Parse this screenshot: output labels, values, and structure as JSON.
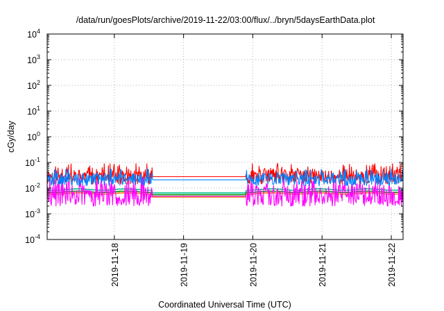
{
  "chart_data": {
    "type": "line",
    "title": "/data/run/goesPlots/archive/2019-11-22/03:00/flux/../bryn/5daysEarthData.plot",
    "xlabel": "Coordinated Universal Time (UTC)",
    "ylabel": "cGy/day",
    "yscale": "log",
    "ylim": [
      0.0001,
      10000
    ],
    "y_ticks": [
      {
        "exp": -4,
        "mantissa": "10",
        "power": "-4"
      },
      {
        "exp": -3,
        "mantissa": "10",
        "power": "-3"
      },
      {
        "exp": -2,
        "mantissa": "10",
        "power": "-2"
      },
      {
        "exp": -1,
        "mantissa": "10",
        "power": "-1"
      },
      {
        "exp": 0,
        "mantissa": "10",
        "power": "0"
      },
      {
        "exp": 1,
        "mantissa": "10",
        "power": "1"
      },
      {
        "exp": 2,
        "mantissa": "10",
        "power": "2"
      },
      {
        "exp": 3,
        "mantissa": "10",
        "power": "3"
      },
      {
        "exp": 4,
        "mantissa": "10",
        "power": "4"
      }
    ],
    "xlim": [
      -0.97,
      4.17
    ],
    "x_origin_label": "2019-11-18",
    "x_ticks": [
      {
        "x": 0,
        "label": "2019-11-18"
      },
      {
        "x": 1,
        "label": "2019-11-19"
      },
      {
        "x": 2,
        "label": "2019-11-20"
      },
      {
        "x": 3,
        "label": "2019-11-21"
      },
      {
        "x": 4,
        "label": "2019-11-22"
      }
    ],
    "grid": true,
    "data_gap": [
      0.55,
      1.9
    ],
    "series": [
      {
        "color": "#ff0000",
        "noisy": true,
        "base": 0.028,
        "spread": 0.6,
        "spike": 0.07,
        "gap_level": 0.028,
        "seed": 11
      },
      {
        "color": "#008a00",
        "noisy": false,
        "base": 0.0072,
        "spread": 0.0,
        "spike": 0.0,
        "gap_level": 0.0055,
        "seed": 0
      },
      {
        "color": "#00c090",
        "noisy": false,
        "base": 0.0088,
        "spread": 0.0,
        "spike": 0.0,
        "gap_level": 0.0065,
        "seed": 0
      },
      {
        "color": "#ff7700",
        "noisy": false,
        "base": 0.0062,
        "spread": 0.0,
        "spike": 0.0,
        "gap_level": 0.0045,
        "seed": 0
      },
      {
        "color": "#ff00ff",
        "noisy": true,
        "base": 0.0055,
        "spread": 0.9,
        "spike": 0.02,
        "gap_level": 0.0048,
        "seed": 29
      },
      {
        "color": "#0080ff",
        "noisy": true,
        "base": 0.022,
        "spread": 0.5,
        "spike": 0.045,
        "gap_level": 0.021,
        "seed": 47
      }
    ]
  }
}
